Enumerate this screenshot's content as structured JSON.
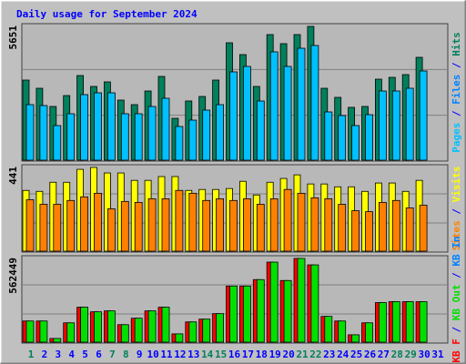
{
  "chart_data": [
    {
      "type": "bar",
      "title": "Daily usage for September 2024",
      "ylim": [
        0,
        5651
      ],
      "right_label": [
        {
          "text": "Pages",
          "color": "#00c0ff"
        },
        {
          "text": " / ",
          "color": "#0000ff"
        },
        {
          "text": "Files",
          "color": "#0080ff"
        },
        {
          "text": " / ",
          "color": "#0000ff"
        },
        {
          "text": "Hits",
          "color": "#00805c"
        }
      ],
      "series": [
        {
          "name": "Hits",
          "color": "#00805c",
          "values": [
            3383,
            3037,
            2268,
            2729,
            3575,
            3114,
            3306,
            2537,
            2345,
            2922,
            3537,
            1768,
            2499,
            2691,
            3383,
            4959,
            4459,
            3114,
            5305,
            4921,
            5305,
            5651,
            3037,
            2653,
            2230,
            2268,
            3421,
            3498,
            3614,
            4344,
            null
          ]
        },
        {
          "name": "Files",
          "color": "#00c0ff",
          "values": [
            2345,
            2307,
            1461,
            1961,
            2768,
            2845,
            2845,
            1961,
            1961,
            2268,
            2614,
            1422,
            1691,
            2114,
            2345,
            3729,
            3960,
            2499,
            4575,
            3960,
            4728,
            4844,
            2037,
            1884,
            1461,
            1922,
            2922,
            2922,
            3037,
            3768,
            null
          ]
        }
      ]
    },
    {
      "type": "bar",
      "ylim": [
        0,
        441
      ],
      "right_label": [
        {
          "text": "Sites",
          "color": "#ff8000"
        },
        {
          "text": " / ",
          "color": "#0000ff"
        },
        {
          "text": "Visits",
          "color": "#ffff00"
        }
      ],
      "series": [
        {
          "name": "Visits",
          "color": "#ffff00",
          "values": [
            320,
            315,
            363,
            363,
            431,
            441,
            412,
            412,
            373,
            373,
            393,
            393,
            320,
            325,
            325,
            330,
            368,
            296,
            363,
            383,
            402,
            354,
            354,
            339,
            339,
            315,
            359,
            359,
            315,
            373,
            null
          ]
        },
        {
          "name": "Sites",
          "color": "#ff8000",
          "values": [
            271,
            247,
            247,
            267,
            286,
            305,
            223,
            262,
            257,
            276,
            276,
            320,
            305,
            267,
            276,
            267,
            276,
            247,
            276,
            325,
            305,
            281,
            276,
            247,
            213,
            208,
            257,
            267,
            228,
            242,
            null
          ]
        }
      ]
    },
    {
      "type": "bar",
      "ylim": [
        0,
        562449
      ],
      "right_label": [
        {
          "text": "KB F",
          "color": "#ff0000"
        },
        {
          "text": " / ",
          "color": "#0000ff"
        },
        {
          "text": "KB Out",
          "color": "#00e000"
        },
        {
          "text": " / ",
          "color": "#0000ff"
        },
        {
          "text": "KB In",
          "color": "#0080ff"
        }
      ],
      "categories": [
        "1",
        "2",
        "3",
        "4",
        "5",
        "6",
        "7",
        "8",
        "9",
        "10",
        "11",
        "12",
        "13",
        "14",
        "15",
        "16",
        "17",
        "18",
        "19",
        "20",
        "21",
        "22",
        "23",
        "24",
        "25",
        "26",
        "27",
        "28",
        "29",
        "30",
        "31"
      ],
      "label_colors": [
        "#00805c",
        "#0000ff",
        "#0000ff",
        "#0000ff",
        "#0000ff",
        "#0000ff",
        "#00805c",
        "#00805c",
        "#0000ff",
        "#0000ff",
        "#0000ff",
        "#0000ff",
        "#0000ff",
        "#00805c",
        "#00805c",
        "#0000ff",
        "#0000ff",
        "#0000ff",
        "#0000ff",
        "#0000ff",
        "#00805c",
        "#00805c",
        "#0000ff",
        "#0000ff",
        "#0000ff",
        "#0000ff",
        "#0000ff",
        "#00805c",
        "#00805c",
        "#0000ff",
        "#0000ff"
      ],
      "series": [
        {
          "name": "KB F",
          "color": "#ff0000",
          "values": [
            142157,
            142157,
            24723,
            129795,
            234866,
            203962,
            210143,
            117433,
            160700,
            210143,
            234866,
            55627,
            135976,
            154519,
            191603,
            377030,
            377030,
            420294,
            537737,
            414112,
            562449,
            519184,
            173061,
            142157,
            49446,
            129795,
            265770,
            271953,
            271953,
            271953,
            null
          ]
        },
        {
          "name": "KB Out",
          "color": "#00e000",
          "values": [
            142157,
            142157,
            24723,
            129795,
            234866,
            203962,
            210143,
            117433,
            160700,
            210143,
            234866,
            55627,
            135976,
            154519,
            191603,
            377030,
            377030,
            420294,
            537737,
            414112,
            562449,
            519184,
            173061,
            142157,
            49446,
            129795,
            265770,
            271953,
            271953,
            271953,
            null
          ]
        }
      ]
    }
  ]
}
